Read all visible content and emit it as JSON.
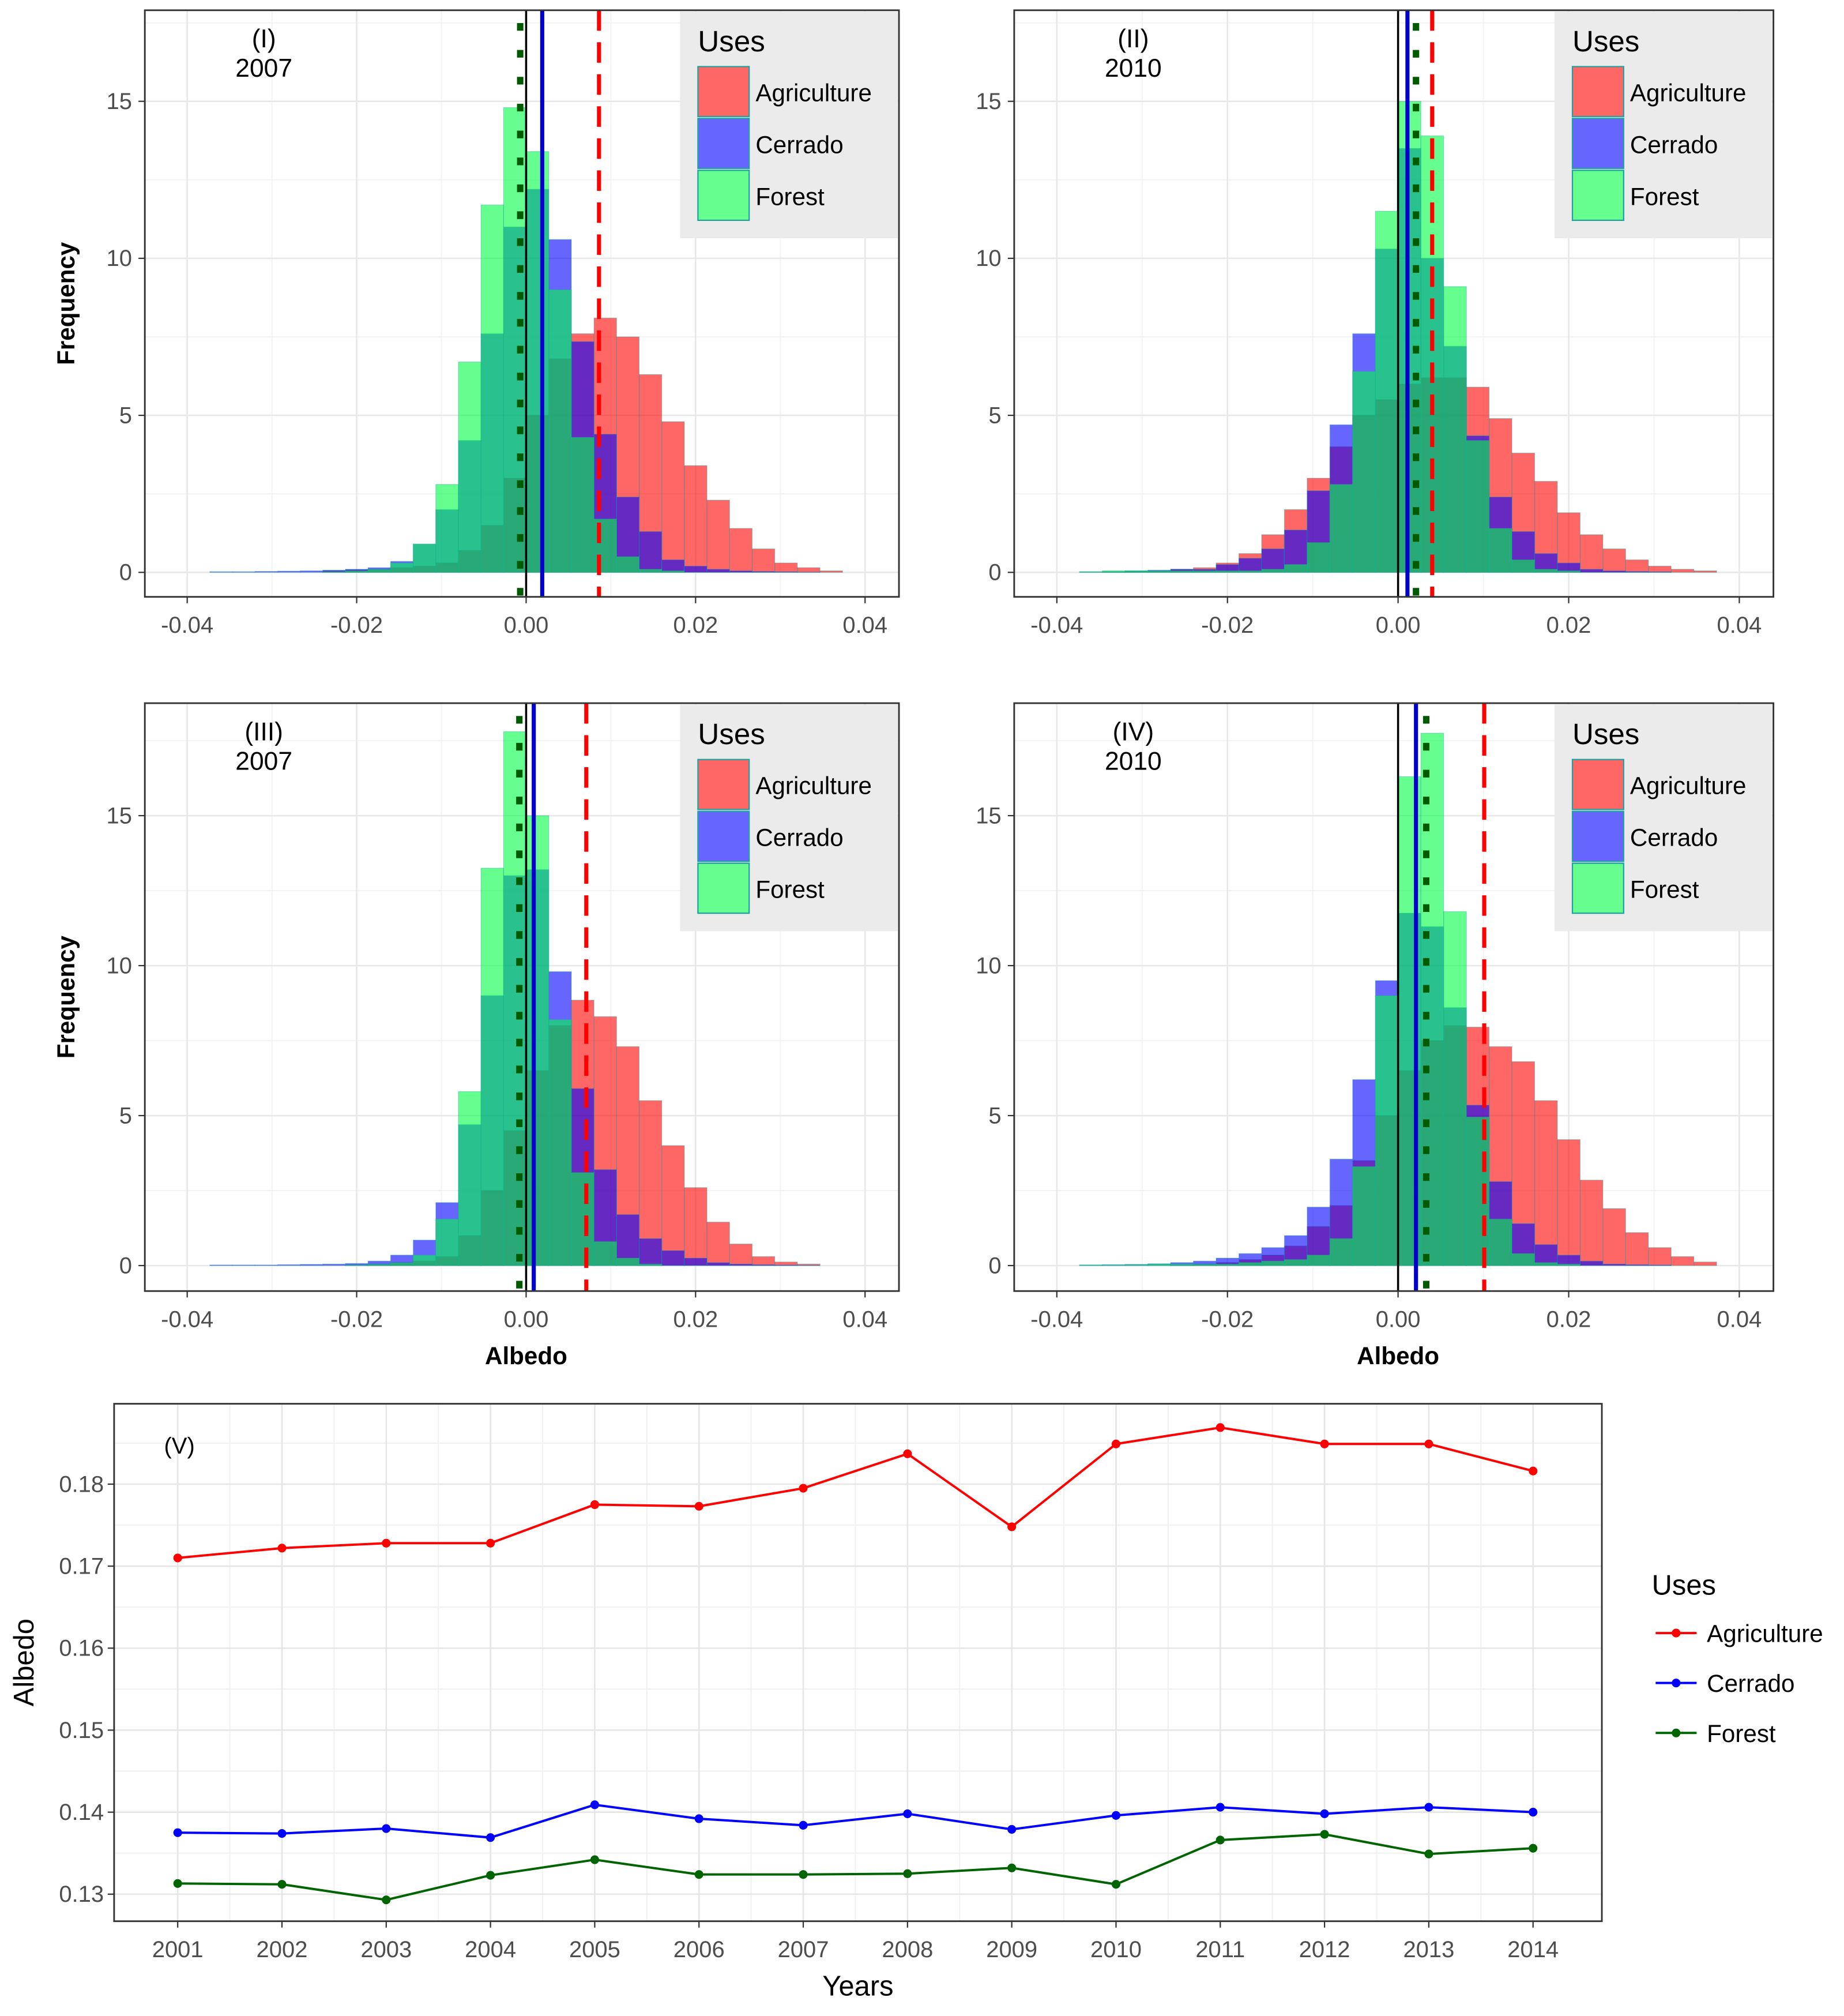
{
  "colors": {
    "agriculture": "#FF0000",
    "cerrado": "#0000FF",
    "forest": "#00FF44",
    "forest_mean": "#005A00",
    "cerrado_mean": "#0000CC",
    "agriculture_mean": "#FF0000",
    "forest_line": "#006400"
  },
  "legend": {
    "title": "Uses",
    "items": [
      "Agriculture",
      "Cerrado",
      "Forest"
    ]
  },
  "chart_data": [
    {
      "type": "histogram",
      "panel_label": "(I)",
      "year": "2007",
      "xlabel": "",
      "ylabel": "Frequency",
      "xlim": [
        -0.045,
        0.044
      ],
      "ylim": [
        -0.78,
        17.9
      ],
      "x_ticks": [
        -0.04,
        -0.02,
        0.0,
        0.02,
        0.04
      ],
      "x_tick_labels": [
        "-0.04",
        "-0.02",
        "0.00",
        "0.02",
        "0.04"
      ],
      "y_ticks": [
        0,
        5,
        10,
        15
      ],
      "y_tick_labels": [
        "0",
        "5",
        "10",
        "15"
      ],
      "bin_start": -0.03733,
      "bin_width": 0.002667,
      "reference_line": 0,
      "means": {
        "Agriculture": 0.0086,
        "Cerrado": 0.0019,
        "Forest": -0.0007
      },
      "series": [
        {
          "name": "Agriculture",
          "values": [
            0,
            0,
            0,
            0,
            0,
            0.05,
            0.08,
            0.1,
            0.15,
            0.2,
            0.3,
            0.7,
            1.5,
            3,
            5,
            6.8,
            7.6,
            8.1,
            7.5,
            6.3,
            4.8,
            3.4,
            2.3,
            1.4,
            0.75,
            0.3,
            0.15,
            0.05
          ]
        },
        {
          "name": "Cerrado",
          "values": [
            0.02,
            0.02,
            0.03,
            0.04,
            0.05,
            0.07,
            0.1,
            0.15,
            0.35,
            0.9,
            2.0,
            4.2,
            7.6,
            11.0,
            12.2,
            10.6,
            7.35,
            4.4,
            2.4,
            1.3,
            0.4,
            0.2,
            0.1,
            0.05,
            0.03,
            0.02,
            0.01,
            0
          ]
        },
        {
          "name": "Forest",
          "values": [
            0,
            0,
            0,
            0,
            0,
            0.02,
            0.05,
            0.1,
            0.3,
            0.9,
            2.8,
            6.7,
            11.7,
            14.8,
            13.4,
            9.0,
            4.3,
            1.7,
            0.5,
            0.1,
            0.05,
            0,
            0,
            0,
            0,
            0,
            0,
            0
          ]
        }
      ]
    },
    {
      "type": "histogram",
      "panel_label": "(II)",
      "year": "2010",
      "xlabel": "",
      "ylabel": "",
      "xlim": [
        -0.045,
        0.044
      ],
      "ylim": [
        -0.78,
        17.9
      ],
      "x_ticks": [
        -0.04,
        -0.02,
        0.0,
        0.02,
        0.04
      ],
      "x_tick_labels": [
        "-0.04",
        "-0.02",
        "0.00",
        "0.02",
        "0.04"
      ],
      "y_ticks": [
        0,
        5,
        10,
        15
      ],
      "y_tick_labels": [
        "0",
        "5",
        "10",
        "15"
      ],
      "bin_start": -0.03733,
      "bin_width": 0.002667,
      "reference_line": 0,
      "means": {
        "Agriculture": 0.004,
        "Cerrado": 0.0011,
        "Forest": 0.0021
      },
      "series": [
        {
          "name": "Agriculture",
          "values": [
            0,
            0.02,
            0.03,
            0.05,
            0.1,
            0.15,
            0.3,
            0.6,
            1.2,
            2.0,
            3.0,
            4.0,
            5.0,
            5.5,
            6.0,
            6.2,
            6.2,
            5.9,
            4.9,
            3.8,
            2.9,
            1.9,
            1.2,
            0.75,
            0.4,
            0.2,
            0.1,
            0.05
          ]
        },
        {
          "name": "Cerrado",
          "values": [
            0.02,
            0.03,
            0.05,
            0.07,
            0.1,
            0.1,
            0.25,
            0.45,
            0.75,
            1.35,
            2.6,
            4.7,
            7.6,
            10.3,
            13.5,
            10.0,
            7.2,
            4.35,
            2.4,
            1.3,
            0.6,
            0.3,
            0.1,
            0.05,
            0.03,
            0.02,
            0,
            0
          ]
        },
        {
          "name": "Forest",
          "values": [
            0.02,
            0.05,
            0.05,
            0.05,
            0.05,
            0.05,
            0.05,
            0.05,
            0.1,
            0.25,
            0.95,
            2.8,
            6.4,
            11.5,
            15.0,
            13.9,
            9.1,
            4.2,
            1.4,
            0.4,
            0.1,
            0.05,
            0,
            0,
            0,
            0,
            0,
            0
          ]
        }
      ]
    },
    {
      "type": "histogram",
      "panel_label": "(III)",
      "year": "2007",
      "xlabel": "Albedo",
      "ylabel": "Frequency",
      "xlim": [
        -0.045,
        0.044
      ],
      "ylim": [
        -0.85,
        18.75
      ],
      "x_ticks": [
        -0.04,
        -0.02,
        0.0,
        0.02,
        0.04
      ],
      "x_tick_labels": [
        "-0.04",
        "-0.02",
        "0.00",
        "0.02",
        "0.04"
      ],
      "y_ticks": [
        0,
        5,
        10,
        15
      ],
      "y_tick_labels": [
        "0",
        "5",
        "10",
        "15"
      ],
      "bin_start": -0.03733,
      "bin_width": 0.002667,
      "reference_line": 0,
      "means": {
        "Agriculture": 0.0071,
        "Cerrado": 0.0009,
        "Forest": -0.0008
      },
      "series": [
        {
          "name": "Agriculture",
          "values": [
            0,
            0,
            0,
            0,
            0,
            0,
            0.02,
            0.05,
            0.1,
            0.15,
            0.3,
            1,
            2.5,
            4.5,
            6.5,
            8,
            8.85,
            8.3,
            7.3,
            5.5,
            4.0,
            2.6,
            1.45,
            0.72,
            0.3,
            0.12,
            0.05,
            0
          ]
        },
        {
          "name": "Cerrado",
          "values": [
            0.02,
            0.02,
            0.02,
            0.03,
            0.04,
            0.05,
            0.07,
            0.15,
            0.35,
            0.85,
            2.1,
            4.7,
            9.0,
            13.0,
            13.2,
            9.8,
            5.9,
            3.2,
            1.7,
            0.9,
            0.5,
            0.25,
            0.1,
            0.05,
            0.03,
            0.02,
            0.01,
            0
          ]
        },
        {
          "name": "Forest",
          "values": [
            0,
            0,
            0,
            0,
            0,
            0,
            0.02,
            0.05,
            0.1,
            0.35,
            1.55,
            5.8,
            13.25,
            17.8,
            15.0,
            8.2,
            3.1,
            0.8,
            0.25,
            0.05,
            0,
            0,
            0,
            0,
            0,
            0,
            0,
            0
          ]
        }
      ]
    },
    {
      "type": "histogram",
      "panel_label": "(IV)",
      "year": "2010",
      "xlabel": "Albedo",
      "ylabel": "",
      "xlim": [
        -0.045,
        0.044
      ],
      "ylim": [
        -0.85,
        18.75
      ],
      "x_ticks": [
        -0.04,
        -0.02,
        0.0,
        0.02,
        0.04
      ],
      "x_tick_labels": [
        "-0.04",
        "-0.02",
        "0.00",
        "0.02",
        "0.04"
      ],
      "y_ticks": [
        0,
        5,
        10,
        15
      ],
      "y_tick_labels": [
        "0",
        "5",
        "10",
        "15"
      ],
      "bin_start": -0.03733,
      "bin_width": 0.002667,
      "reference_line": 0,
      "means": {
        "Agriculture": 0.0101,
        "Cerrado": 0.0021,
        "Forest": 0.0033
      },
      "series": [
        {
          "name": "Agriculture",
          "values": [
            0,
            0,
            0,
            0,
            0.02,
            0.05,
            0.1,
            0.2,
            0.35,
            0.65,
            1.3,
            2,
            3.5,
            5,
            6.5,
            7.5,
            8,
            7.95,
            7.3,
            6.8,
            5.5,
            4.2,
            2.85,
            1.9,
            1.1,
            0.6,
            0.3,
            0.12
          ]
        },
        {
          "name": "Cerrado",
          "values": [
            0.02,
            0.03,
            0.04,
            0.06,
            0.1,
            0.15,
            0.25,
            0.4,
            0.6,
            1.0,
            1.95,
            3.55,
            6.2,
            9.5,
            11.75,
            11.3,
            8.6,
            5.35,
            2.8,
            1.4,
            0.7,
            0.35,
            0.15,
            0.05,
            0.03,
            0.02,
            0,
            0
          ]
        },
        {
          "name": "Forest",
          "values": [
            0.02,
            0.02,
            0.03,
            0.05,
            0.05,
            0.05,
            0.05,
            0.1,
            0.15,
            0.2,
            0.35,
            0.9,
            3.3,
            9.0,
            16.3,
            17.75,
            11.8,
            4.95,
            1.55,
            0.4,
            0.1,
            0.05,
            0,
            0,
            0,
            0,
            0,
            0
          ]
        }
      ]
    },
    {
      "type": "line",
      "panel_label": "(V)",
      "xlabel": "Years",
      "ylabel": "Albedo",
      "xlim": [
        2000.39,
        2014.66
      ],
      "ylim": [
        0.1267,
        0.1898
      ],
      "x": [
        2001,
        2002,
        2003,
        2004,
        2005,
        2006,
        2007,
        2008,
        2009,
        2010,
        2011,
        2012,
        2013,
        2014
      ],
      "x_tick_labels": [
        "2001",
        "2002",
        "2003",
        "2004",
        "2005",
        "2006",
        "2007",
        "2008",
        "2009",
        "2010",
        "2011",
        "2012",
        "2013",
        "2014"
      ],
      "y_ticks": [
        0.13,
        0.14,
        0.15,
        0.16,
        0.17,
        0.18
      ],
      "y_tick_labels": [
        "0.13",
        "0.14",
        "0.15",
        "0.16",
        "0.17",
        "0.18"
      ],
      "legend_title": "Uses",
      "legend_position": "right",
      "series": [
        {
          "name": "Agriculture",
          "values": [
            0.171,
            0.1722,
            0.1728,
            0.1728,
            0.1775,
            0.1773,
            0.1795,
            0.1837,
            0.1748,
            0.1849,
            0.1869,
            0.1849,
            0.1849,
            0.1816
          ]
        },
        {
          "name": "Cerrado",
          "values": [
            0.1375,
            0.1374,
            0.138,
            0.1369,
            0.1409,
            0.1392,
            0.1384,
            0.1398,
            0.1379,
            0.1396,
            0.1406,
            0.1398,
            0.1406,
            0.14
          ]
        },
        {
          "name": "Forest",
          "values": [
            0.1313,
            0.1312,
            0.1293,
            0.1323,
            0.1342,
            0.1324,
            0.1324,
            0.1325,
            0.1332,
            0.1312,
            0.1366,
            0.1373,
            0.1349,
            0.1356
          ]
        }
      ]
    }
  ]
}
